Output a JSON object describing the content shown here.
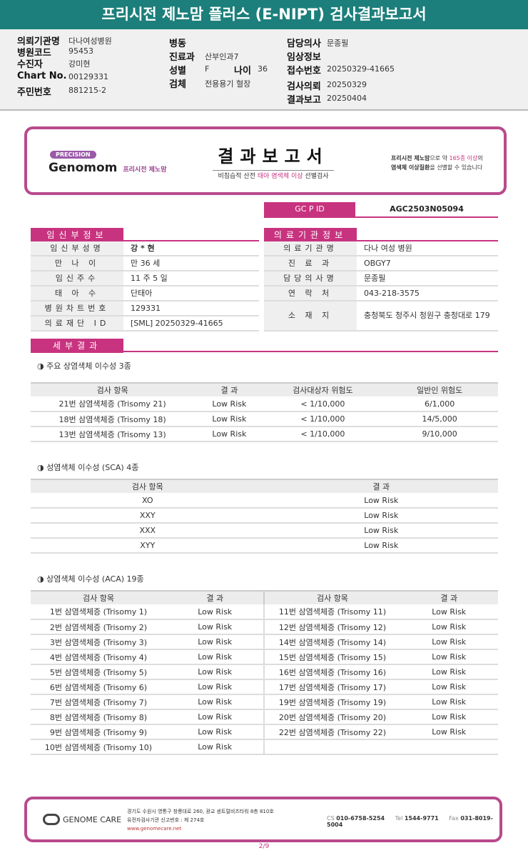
{
  "title": "프리시전 제노맘 플러스 (E-NIPT) 검사결과보고서",
  "info": {
    "c1": [
      [
        "의뢰기관명",
        "다나여성병원"
      ],
      [
        "병원코드",
        "95453"
      ],
      [
        "수진자",
        "강미현"
      ],
      [
        "Chart No.",
        "00129331"
      ],
      [
        "주민번호",
        "881215-2"
      ]
    ],
    "c2": [
      [
        "병동",
        ""
      ],
      [
        "진료과",
        "산부인과7"
      ],
      [
        "성별",
        "F"
      ],
      [
        "검체",
        "전용용기 혈장"
      ]
    ],
    "age_label": "나이",
    "age": "36",
    "c3": [
      [
        "담당의사",
        "문종필"
      ],
      [
        "임상정보",
        ""
      ],
      [
        "접수번호",
        "20250329-41665"
      ],
      [
        "검사의뢰",
        "20250329"
      ],
      [
        "결과보고",
        "20250404"
      ]
    ]
  },
  "banner": {
    "badge": "PRECISION",
    "brand": "Genomom",
    "brand_sub": "프리시전 제노맘",
    "title": "결과보고서",
    "sub_a": "비침습적 산전 ",
    "sub_b": "태아 염색체 이상",
    "sub_c": " 선별검사",
    "right1a": "프리시전 제노맘",
    "right1b": "으로 약 ",
    "right1c": "165종 이상",
    "right1d": "의",
    "right2a": "염색체 이상질환",
    "right2b": "을 선별할 수 있습니다"
  },
  "gcp": {
    "label": "GC P ID",
    "value": "AGC2503N05094"
  },
  "patient": {
    "title": "임신부정보",
    "rows": [
      [
        "임신부성명",
        "강 * 현"
      ],
      [
        "만 나 이",
        "만 36 세"
      ],
      [
        "임신주수",
        "11 주 5 일"
      ],
      [
        "태 아 수",
        "단태아"
      ],
      [
        "병원차트번호",
        "129331"
      ],
      [
        "의료재단 ID",
        "[SML] 20250329-41665"
      ]
    ]
  },
  "clinic": {
    "title": "의료기관정보",
    "rows": [
      [
        "의료기관명",
        "다나 여성 병원"
      ],
      [
        "진 료 과",
        "OBGY7"
      ],
      [
        "담당의사명",
        "문종필"
      ],
      [
        "연 락 처",
        "043-218-3575"
      ],
      [
        "소 재 지",
        "충청북도 청주시 청원구 충청대로 179"
      ]
    ]
  },
  "detail_title": "세부결과",
  "t1": {
    "title": "◑ 주요 상염색체 이수성 3종",
    "headers": [
      "검사 항목",
      "결 과",
      "검사대상자 위험도",
      "일반인 위험도"
    ],
    "rows": [
      [
        "21번 삼염색체증 (Trisomy 21)",
        "Low Risk",
        "< 1/10,000",
        "6/1,000"
      ],
      [
        "18번 삼염색체증 (Trisomy 18)",
        "Low Risk",
        "< 1/10,000",
        "14/5,000"
      ],
      [
        "13번 삼염색체증 (Trisomy 13)",
        "Low Risk",
        "< 1/10,000",
        "9/10,000"
      ]
    ]
  },
  "t2": {
    "title": "◑ 성염색체 이수성 (SCA) 4종",
    "headers": [
      "검사 항목",
      "결 과"
    ],
    "rows": [
      [
        "XO",
        "Low Risk"
      ],
      [
        "XXY",
        "Low Risk"
      ],
      [
        "XXX",
        "Low Risk"
      ],
      [
        "XYY",
        "Low Risk"
      ]
    ]
  },
  "t3": {
    "title": "◑ 상염색체 이수성 (ACA) 19종",
    "headers": [
      "검사 항목",
      "결 과",
      "검사 항목",
      "결 과"
    ],
    "rows": [
      [
        "1번 삼염색체증 (Trisomy 1)",
        "Low Risk",
        "11번 삼염색체증 (Trisomy 11)",
        "Low Risk"
      ],
      [
        "2번 삼염색체증 (Trisomy 2)",
        "Low Risk",
        "12번 삼염색체증 (Trisomy 12)",
        "Low Risk"
      ],
      [
        "3번 삼염색체증 (Trisomy 3)",
        "Low Risk",
        "14번 삼염색체증 (Trisomy 14)",
        "Low Risk"
      ],
      [
        "4번 삼염색체증 (Trisomy 4)",
        "Low Risk",
        "15번 삼염색체증 (Trisomy 15)",
        "Low Risk"
      ],
      [
        "5번 삼염색체증 (Trisomy 5)",
        "Low Risk",
        "16번 삼염색체증 (Trisomy 16)",
        "Low Risk"
      ],
      [
        "6번 삼염색체증 (Trisomy 6)",
        "Low Risk",
        "17번 삼염색체증 (Trisomy 17)",
        "Low Risk"
      ],
      [
        "7번 삼염색체증 (Trisomy 7)",
        "Low Risk",
        "19번 삼염색체증 (Trisomy 19)",
        "Low Risk"
      ],
      [
        "8번 삼염색체증 (Trisomy 8)",
        "Low Risk",
        "20번 삼염색체증 (Trisomy 20)",
        "Low Risk"
      ],
      [
        "9번 삼염색체증 (Trisomy 9)",
        "Low Risk",
        "22번 삼염색체증 (Trisomy 22)",
        "Low Risk"
      ],
      [
        "10번 삼염색체증 (Trisomy 10)",
        "Low Risk",
        "",
        ""
      ]
    ]
  },
  "footer": {
    "logo": "GENOME CARE",
    "addr1": "경기도 수원시 영통구 창룡대로 260, 광교 센트럴비즈타워 8층 810호",
    "addr2": "유전자검사기관 신고번호 : 제 274호",
    "url": "www.genomecare.net",
    "cs_label": "CS",
    "cs": "010-6758-5254",
    "tel_label": "Tel",
    "tel": "1544-9771",
    "fax_label": "Fax",
    "fax": "031-8019-5004"
  },
  "page": "2/9",
  "colors": {
    "accent": "#c8337f",
    "header": "#1c7f7b"
  }
}
